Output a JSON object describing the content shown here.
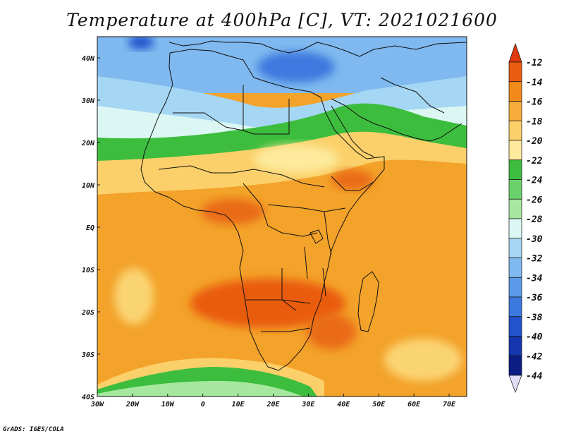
{
  "title": "Temperature at 400hPa [C], VT: 2021021600",
  "credit": "GrADS: IGES/COLA",
  "map": {
    "projection": "latlon",
    "lon_range": [
      -30,
      75
    ],
    "lat_range": [
      -40,
      45
    ],
    "x_ticks": [
      {
        "lon": -30,
        "label": "30W"
      },
      {
        "lon": -20,
        "label": "20W"
      },
      {
        "lon": -10,
        "label": "10W"
      },
      {
        "lon": 0,
        "label": "0"
      },
      {
        "lon": 10,
        "label": "10E"
      },
      {
        "lon": 20,
        "label": "20E"
      },
      {
        "lon": 30,
        "label": "30E"
      },
      {
        "lon": 40,
        "label": "40E"
      },
      {
        "lon": 50,
        "label": "50E"
      },
      {
        "lon": 60,
        "label": "60E"
      },
      {
        "lon": 70,
        "label": "70E"
      }
    ],
    "y_ticks": [
      {
        "lat": 40,
        "label": "40N"
      },
      {
        "lat": 30,
        "label": "30N"
      },
      {
        "lat": 20,
        "label": "20N"
      },
      {
        "lat": 10,
        "label": "10N"
      },
      {
        "lat": 0,
        "label": "EQ"
      },
      {
        "lat": -10,
        "label": "10S"
      },
      {
        "lat": -20,
        "label": "20S"
      },
      {
        "lat": -30,
        "label": "30S"
      },
      {
        "lat": -40,
        "label": "40S"
      }
    ],
    "field_note_colors": {
      "background": "#f3a22a",
      "hotspot": "#ea6a16",
      "warm_band": "#fbd472",
      "cold_north": "#6ea6e8"
    }
  },
  "colorbar": {
    "labels": [
      "-12",
      "-14",
      "-16",
      "-18",
      "-20",
      "-22",
      "-24",
      "-26",
      "-28",
      "-30",
      "-32",
      "-34",
      "-36",
      "-38",
      "-40",
      "-42",
      "-44"
    ],
    "colors": [
      "#ea5c10",
      "#f28a1a",
      "#f6ad3a",
      "#fbd06a",
      "#fdea9c",
      "#3dbd3d",
      "#6bd26b",
      "#a6e8a0",
      "#dcf7f3",
      "#a5d6f3",
      "#7fb9ef",
      "#5a9ae8",
      "#3c79df",
      "#2253cc",
      "#1436ae",
      "#0b1d84"
    ],
    "top_arrow_color": "#e03a0c",
    "bottom_arrow_color": "#e0dcf8"
  }
}
